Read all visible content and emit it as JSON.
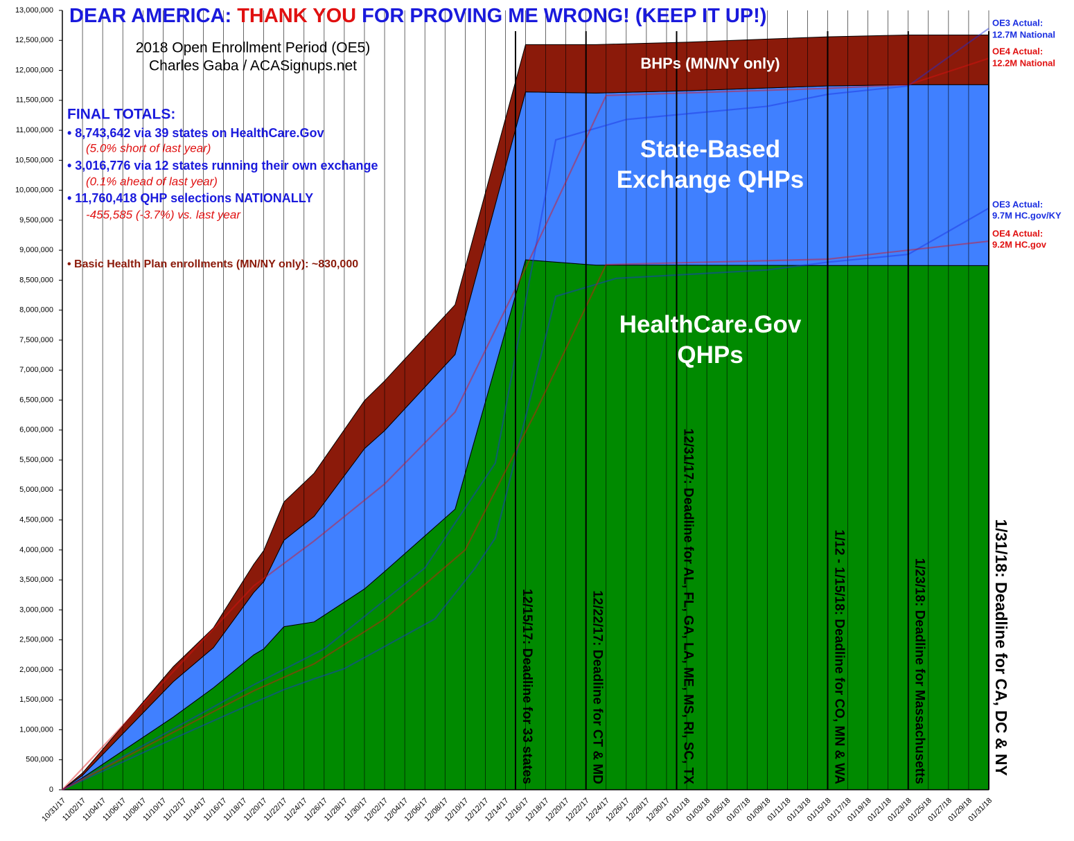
{
  "chart_data": {
    "type": "stacked-area",
    "title_parts": [
      {
        "text": "DEAR AMERICA: ",
        "color": "#1a1adc"
      },
      {
        "text": "THANK YOU",
        "color": "#e01010"
      },
      {
        "text": " FOR PROVING ME WRONG! (KEEP IT UP!)",
        "color": "#1a1adc"
      }
    ],
    "subtitle": [
      "2018 Open Enrollment Period (OE5)",
      "Charles Gaba / ACASignups.net"
    ],
    "totals": {
      "heading": "FINAL TOTALS:",
      "lines": [
        {
          "text": "• 8,743,642 via 39 states on HealthCare.Gov",
          "color": "#1a1adc",
          "italic": false
        },
        {
          "text": "(5.0% short of last year)",
          "color": "#e01010",
          "italic": true
        },
        {
          "text": "• 3,016,776 via 12 states running their own exchange",
          "color": "#1a1adc",
          "italic": false
        },
        {
          "text": "(0.1% ahead of last year)",
          "color": "#e01010",
          "italic": true
        },
        {
          "text": "• 11,760,418 QHP selections NATIONALLY",
          "color": "#1a1adc",
          "italic": false
        },
        {
          "text": "-455,585 (-3.7%) vs. last year",
          "color": "#e01010",
          "italic": true
        }
      ],
      "note": "• Basic Health Plan enrollments (MN/NY only): ~830,000",
      "note_color": "#8b1a0a"
    },
    "x": [
      "10/31/17",
      "11/02/17",
      "11/11/17",
      "11/15/17",
      "11/19/17",
      "11/20/17",
      "11/22/17",
      "11/25/17",
      "11/30/17",
      "12/02/17",
      "12/09/17",
      "12/16/17",
      "12/23/17",
      "01/01/18",
      "01/15/18",
      "01/23/18",
      "01/31/18"
    ],
    "series": [
      {
        "name": "HealthCare.Gov QHPs",
        "color": "#008a00",
        "values": [
          0,
          200000,
          1210000,
          1700000,
          2250000,
          2350000,
          2720000,
          2800000,
          3350000,
          3640000,
          4680000,
          8840000,
          8750000,
          8750000,
          8744000,
          8744000,
          8743642
        ]
      },
      {
        "name": "State-Based Exchange QHPs",
        "color": "#4080ff",
        "values": [
          0,
          40000,
          590000,
          670000,
          1040000,
          1120000,
          1440000,
          1760000,
          2340000,
          2350000,
          2580000,
          2800000,
          2870000,
          2910000,
          2996000,
          3016000,
          3016776
        ]
      },
      {
        "name": "BHPs (MN/NY only)",
        "color": "#8b1a0a",
        "values": [
          0,
          40000,
          250000,
          330000,
          470000,
          520000,
          640000,
          720000,
          800000,
          830000,
          830000,
          790000,
          810000,
          810000,
          820000,
          830000,
          830000
        ]
      }
    ],
    "lines": [
      {
        "label": [
          "OE3 Actual:",
          "12.7M National"
        ],
        "color": "#1a2ee0",
        "x": [
          "10/31/17",
          "11/19/17",
          "11/26/17",
          "12/06/17",
          "12/10/17",
          "12/13/17",
          "12/19/17",
          "12/26/17",
          "01/09/18",
          "01/15/18",
          "01/23/18",
          "01/31/18"
        ],
        "values": [
          0,
          1750000,
          2350000,
          3700000,
          4700000,
          5450000,
          10840000,
          11180000,
          11400000,
          11600000,
          11740000,
          12700000
        ]
      },
      {
        "label": [
          "OE4 Actual:",
          "12.2M National"
        ],
        "color": "#e01010",
        "x": [
          "10/31/17",
          "11/19/17",
          "11/25/17",
          "12/02/17",
          "12/09/17",
          "12/16/17",
          "12/24/17",
          "01/15/18",
          "01/23/18",
          "01/31/18"
        ],
        "values": [
          0,
          3400000,
          4150000,
          5100000,
          6300000,
          8700000,
          11580000,
          11700000,
          11760000,
          12200000
        ]
      },
      {
        "label": [
          "OE3 Actual:",
          "9.7M HC.gov/KY"
        ],
        "color": "#1a2ee0",
        "x": [
          "10/31/17",
          "11/11/17",
          "11/19/17",
          "11/22/17",
          "11/25/17",
          "11/28/17",
          "12/07/17",
          "12/11/17",
          "12/13/17",
          "12/19/17",
          "12/25/17",
          "01/09/18",
          "01/15/18",
          "01/23/18",
          "01/31/18"
        ],
        "values": [
          0,
          850000,
          1450000,
          1670000,
          1850000,
          2020000,
          2850000,
          3700000,
          4200000,
          8230000,
          8530000,
          8670000,
          8800000,
          8930000,
          9700000
        ]
      },
      {
        "label": [
          "OE4 Actual:",
          "9.2M HC.gov"
        ],
        "color": "#e01010",
        "x": [
          "10/31/17",
          "11/19/17",
          "11/25/17",
          "12/02/17",
          "12/10/17",
          "12/17/17",
          "12/24/17",
          "01/15/18",
          "01/31/18"
        ],
        "values": [
          0,
          1650000,
          2100000,
          2850000,
          4000000,
          6300000,
          8760000,
          8850000,
          9150000
        ]
      }
    ],
    "deadlines": [
      {
        "x": "12/15/17",
        "label": "12/15/17: Deadline for 33 states"
      },
      {
        "x": "12/22/17",
        "label": "12/22/17: Deadline for CT & MD"
      },
      {
        "x": "12/31/17",
        "label": "12/31/17: Deadline for AL, FL, GA, LA, ME, MS, RI, SC, TX"
      },
      {
        "x": "01/15/18",
        "label": "1/12 - 1/15/18: Deadline for CO, MN & WA"
      },
      {
        "x": "01/23/18",
        "label": "1/23/18: Deadline for Massachusetts"
      },
      {
        "x": "01/31/18",
        "label": "1/31/18: Deadline for CA, DC & NY"
      }
    ],
    "xlim": [
      "10/31/17",
      "01/31/18"
    ],
    "xticks": [
      "10/31/17",
      "11/02/17",
      "11/04/17",
      "11/06/17",
      "11/08/17",
      "11/10/17",
      "11/12/17",
      "11/14/17",
      "11/16/17",
      "11/18/17",
      "11/20/17",
      "11/22/17",
      "11/24/17",
      "11/26/17",
      "11/28/17",
      "11/30/17",
      "12/02/17",
      "12/04/17",
      "12/06/17",
      "12/08/17",
      "12/10/17",
      "12/12/17",
      "12/14/17",
      "12/16/17",
      "12/18/17",
      "12/20/17",
      "12/22/17",
      "12/24/17",
      "12/26/17",
      "12/28/17",
      "12/30/17",
      "01/01/18",
      "01/03/18",
      "01/05/18",
      "01/07/18",
      "01/09/18",
      "01/11/18",
      "01/13/18",
      "01/15/18",
      "01/17/18",
      "01/19/18",
      "01/21/18",
      "01/23/18",
      "01/25/18",
      "01/27/18",
      "01/29/18",
      "01/31/18"
    ],
    "ylim": [
      0,
      13000000
    ],
    "yticks": [
      0,
      {
        "value": 500000,
        "label": "500,000"
      },
      {
        "value": 1000000,
        "label": "1,000,000"
      },
      {
        "value": 1500000,
        "label": "1,500,000"
      },
      {
        "value": 2000000,
        "label": "2,000,000"
      },
      {
        "value": 2500000,
        "label": "2,500,000"
      },
      {
        "value": 3000000,
        "label": "3,000,000"
      },
      {
        "value": 3500000,
        "label": "3,500,000"
      },
      {
        "value": 4000000,
        "label": "4,000,000"
      },
      {
        "value": 4500000,
        "label": "4,500,000"
      },
      {
        "value": 5000000,
        "label": "5,000,000"
      },
      {
        "value": 5500000,
        "label": "5,500,000"
      },
      {
        "value": 6000000,
        "label": "6,000,000"
      },
      {
        "value": 6500000,
        "label": "6,500,000"
      },
      {
        "value": 7000000,
        "label": "7,000,000"
      },
      {
        "value": 7500000,
        "label": "7,500,000"
      },
      {
        "value": 8000000,
        "label": "8,000,000"
      },
      {
        "value": 8500000,
        "label": "8,500,000"
      },
      {
        "value": 9000000,
        "label": "9,000,000"
      },
      {
        "value": 9500000,
        "label": "9,500,000"
      },
      {
        "value": 10000000,
        "label": "10,000,000"
      },
      {
        "value": 10500000,
        "label": "10,500,000"
      },
      {
        "value": 11000000,
        "label": "11,000,000"
      },
      {
        "value": 11500000,
        "label": "11,500,000"
      },
      {
        "value": 12000000,
        "label": "12,000,000"
      },
      {
        "value": 12500000,
        "label": "12,500,000"
      },
      {
        "value": 13000000,
        "label": "13,000,000"
      }
    ],
    "grid": true
  }
}
